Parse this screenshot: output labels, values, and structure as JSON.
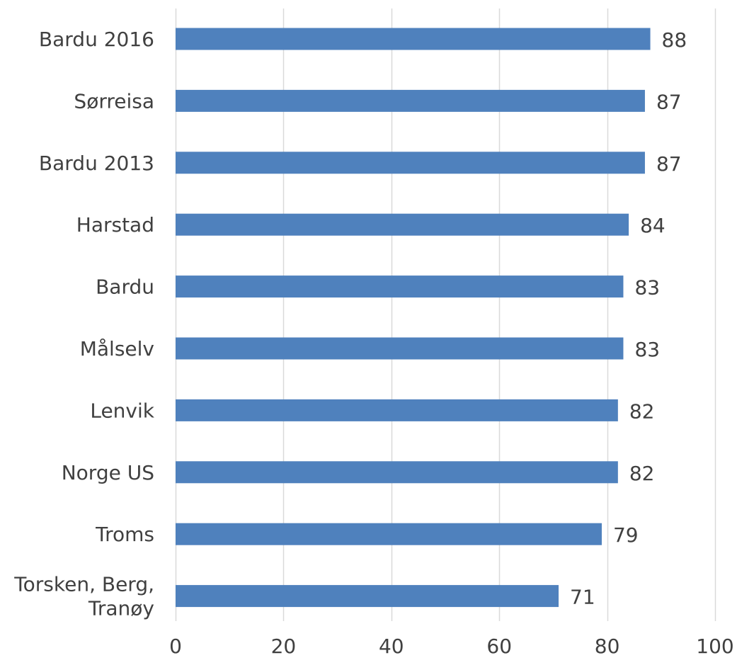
{
  "chart_data": {
    "type": "bar",
    "orientation": "horizontal",
    "categories": [
      "Bardu 2016",
      "Sørreisa",
      "Bardu 2013",
      "Harstad",
      "Bardu",
      "Målselv",
      "Lenvik",
      "Norge US",
      "Troms",
      "Torsken, Berg, Tranøy"
    ],
    "category_lines": [
      [
        "Bardu 2016"
      ],
      [
        "Sørreisa"
      ],
      [
        "Bardu 2013"
      ],
      [
        "Harstad"
      ],
      [
        "Bardu"
      ],
      [
        "Målselv"
      ],
      [
        "Lenvik"
      ],
      [
        "Norge US"
      ],
      [
        "Troms"
      ],
      [
        "Torsken, Berg,",
        "Tranøy"
      ]
    ],
    "values": [
      88,
      87,
      87,
      84,
      83,
      83,
      82,
      82,
      79,
      71
    ],
    "data_labels": [
      "88",
      "87",
      "87",
      "84",
      "83",
      "83",
      "82",
      "82",
      "79",
      "71"
    ],
    "xlim": [
      0,
      100
    ],
    "xticks": [
      0,
      20,
      40,
      60,
      80,
      100
    ],
    "xtick_labels": [
      "0",
      "20",
      "40",
      "60",
      "80",
      "100"
    ],
    "grid": true,
    "legend": "none",
    "bar_color": "#4f81bd",
    "grid_color": "#d9d9d9",
    "text_color": "#404040"
  }
}
